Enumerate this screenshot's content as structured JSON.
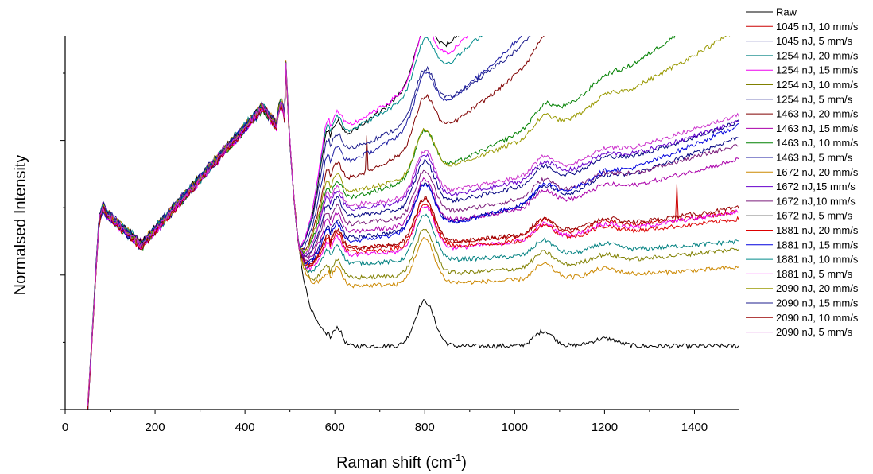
{
  "chart_data": {
    "type": "line",
    "title": "",
    "xlabel": "Raman shift (cm",
    "xlabel_sup": "-1",
    "xlabel_end": ")",
    "ylabel": "Normalsed Intensity",
    "xlim": [
      0,
      1500
    ],
    "ylim": [
      0,
      1
    ],
    "x_ticks": [
      0,
      200,
      400,
      600,
      800,
      1000,
      1200,
      1400
    ],
    "y_ticks_shown": false,
    "grid": false,
    "legend_position": "right-outside",
    "series": [
      {
        "name": "Raw",
        "color": "#000000",
        "offset": 0.0,
        "slope": 0.0,
        "spike": null
      },
      {
        "name": "1045 nJ, 10 mm/s",
        "color": "#cc0000",
        "offset": 0.26,
        "slope": 0.1,
        "spike": 1360
      },
      {
        "name": "1045 nJ, 5 mm/s",
        "color": "#000080",
        "offset": 0.28,
        "slope": 0.28,
        "spike": null
      },
      {
        "name": "1254 nJ, 20 mm/s",
        "color": "#008080",
        "offset": 0.22,
        "slope": 0.06,
        "spike": null
      },
      {
        "name": "1254 nJ, 15 mm/s",
        "color": "#ee00ee",
        "offset": 0.24,
        "slope": 0.12,
        "spike": null
      },
      {
        "name": "1254 nJ, 10 mm/s",
        "color": "#808000",
        "offset": 0.18,
        "slope": 0.08,
        "spike": null
      },
      {
        "name": "1254 nJ, 5 mm/s",
        "color": "#000080",
        "offset": 0.34,
        "slope": 0.26,
        "spike": null
      },
      {
        "name": "1463 nJ, 20 mm/s",
        "color": "#800000",
        "offset": 0.42,
        "slope": 0.95,
        "spike": 670
      },
      {
        "name": "1463 nJ, 15 mm/s",
        "color": "#aa00aa",
        "offset": 0.3,
        "slope": 0.2,
        "spike": null
      },
      {
        "name": "1463 nJ, 10 mm/s",
        "color": "#008000",
        "offset": 0.38,
        "slope": 0.58,
        "spike": null
      },
      {
        "name": "1463 nJ, 5 mm/s",
        "color": "#1a1aa0",
        "offset": 0.46,
        "slope": 1.1,
        "spike": null
      },
      {
        "name": "1672 nJ, 20 mm/s",
        "color": "#cc8800",
        "offset": 0.16,
        "slope": 0.05,
        "spike": null
      },
      {
        "name": "1672 nJ,15 mm/s",
        "color": "#6600cc",
        "offset": 0.36,
        "slope": 0.24,
        "spike": null
      },
      {
        "name": "1672 nJ,10 mm/s",
        "color": "#7a1b7a",
        "offset": 0.32,
        "slope": 0.22,
        "spike": null
      },
      {
        "name": "1672 nJ, 5 mm/s",
        "color": "#000000",
        "offset": 0.52,
        "slope": 1.6,
        "spike": null
      },
      {
        "name": "1881 nJ, 20 mm/s",
        "color": "#dd0000",
        "offset": 0.25,
        "slope": 0.09,
        "spike": null
      },
      {
        "name": "1881 nJ, 15 mm/s",
        "color": "#0000dd",
        "offset": 0.27,
        "slope": 0.32,
        "spike": null
      },
      {
        "name": "1881 nJ, 10 mm/s",
        "color": "#008b8b",
        "offset": 0.54,
        "slope": 1.2,
        "spike": null
      },
      {
        "name": "1881 nJ, 5 mm/s",
        "color": "#ff00ff",
        "offset": 0.55,
        "slope": 1.3,
        "spike": null
      },
      {
        "name": "2090 nJ, 20 mm/s",
        "color": "#999900",
        "offset": 0.4,
        "slope": 0.45,
        "spike": null
      },
      {
        "name": "2090 nJ, 15 mm/s",
        "color": "#1c1c8c",
        "offset": 0.5,
        "slope": 0.9,
        "spike": null
      },
      {
        "name": "2090 nJ, 10 mm/s",
        "color": "#990000",
        "offset": 0.26,
        "slope": 0.11,
        "spike": null
      },
      {
        "name": "2090 nJ, 5 mm/s",
        "color": "#cc33cc",
        "offset": 0.37,
        "slope": 0.25,
        "spike": null
      }
    ]
  }
}
